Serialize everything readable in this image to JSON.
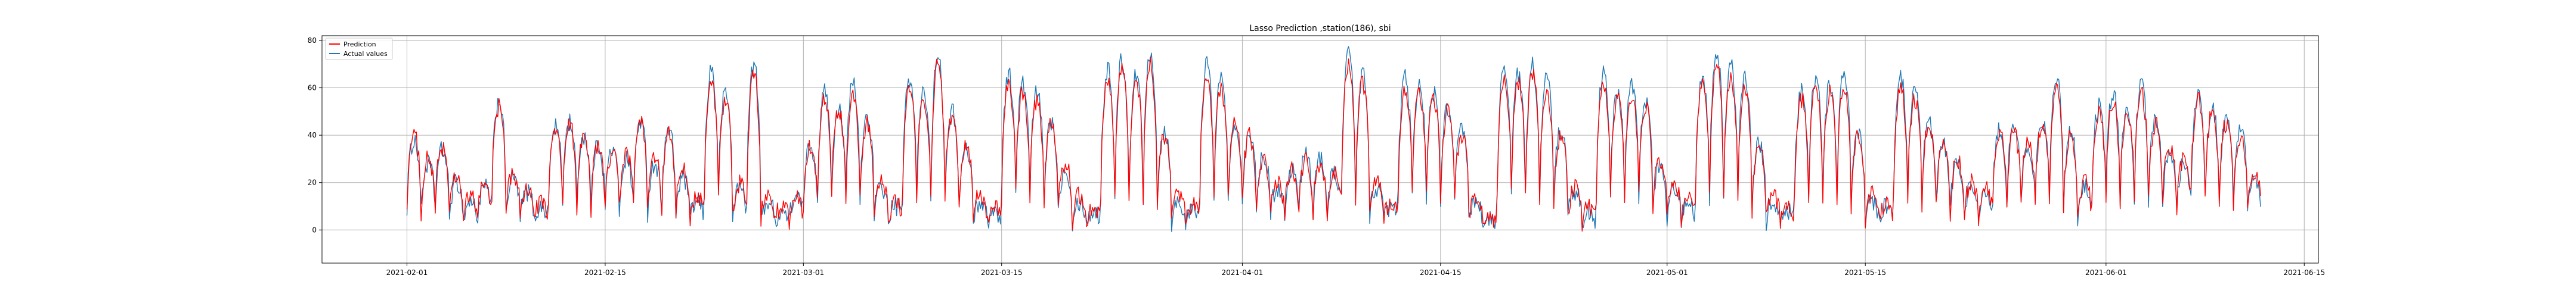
{
  "chart_data": {
    "type": "line",
    "title": "Lasso Prediction ,station(186), sbi",
    "xlabel": "",
    "ylabel": "",
    "x_range": [
      "2021-01-26",
      "2021-06-16"
    ],
    "ylim": [
      -14,
      82
    ],
    "y_ticks": [
      0,
      20,
      40,
      60,
      80
    ],
    "x_ticks": [
      "2021-02-01",
      "2021-02-15",
      "2021-03-01",
      "2021-03-15",
      "2021-04-01",
      "2021-04-15",
      "2021-05-01",
      "2021-05-15",
      "2021-06-01",
      "2021-06-15"
    ],
    "grid": true,
    "legend_position": "upper-left",
    "data_start": "2021-02-01",
    "data_end": "2021-06-11",
    "series": [
      {
        "name": "Prediction",
        "color": "#ff0000",
        "points": [
          [
            "2021-02-01",
            40
          ],
          [
            "2021-02-02",
            30
          ],
          [
            "2021-02-03",
            35
          ],
          [
            "2021-02-04",
            22
          ],
          [
            "2021-02-05",
            14
          ],
          [
            "2021-02-06",
            20
          ],
          [
            "2021-02-07",
            52
          ],
          [
            "2021-02-08",
            24
          ],
          [
            "2021-02-09",
            18
          ],
          [
            "2021-02-10",
            12
          ],
          [
            "2021-02-11",
            42
          ],
          [
            "2021-02-12",
            44
          ],
          [
            "2021-02-13",
            38
          ],
          [
            "2021-02-14",
            35
          ],
          [
            "2021-02-15",
            33
          ],
          [
            "2021-02-16",
            32
          ],
          [
            "2021-02-17",
            45
          ],
          [
            "2021-02-18",
            30
          ],
          [
            "2021-02-19",
            40
          ],
          [
            "2021-02-20",
            25
          ],
          [
            "2021-02-21",
            15
          ],
          [
            "2021-02-22",
            62
          ],
          [
            "2021-02-23",
            55
          ],
          [
            "2021-02-24",
            20
          ],
          [
            "2021-02-25",
            65
          ],
          [
            "2021-02-26",
            15
          ],
          [
            "2021-02-27",
            10
          ],
          [
            "2021-02-28",
            15
          ],
          [
            "2021-03-01",
            35
          ],
          [
            "2021-03-02",
            55
          ],
          [
            "2021-03-03",
            50
          ],
          [
            "2021-03-04",
            58
          ],
          [
            "2021-03-05",
            45
          ],
          [
            "2021-03-06",
            20
          ],
          [
            "2021-03-07",
            12
          ],
          [
            "2021-03-08",
            60
          ],
          [
            "2021-03-09",
            55
          ],
          [
            "2021-03-10",
            70
          ],
          [
            "2021-03-11",
            48
          ],
          [
            "2021-03-12",
            35
          ],
          [
            "2021-03-13",
            15
          ],
          [
            "2021-03-14",
            10
          ],
          [
            "2021-03-15",
            62
          ],
          [
            "2021-03-16",
            58
          ],
          [
            "2021-03-17",
            55
          ],
          [
            "2021-03-18",
            45
          ],
          [
            "2021-03-19",
            28
          ],
          [
            "2021-03-20",
            15
          ],
          [
            "2021-03-21",
            10
          ],
          [
            "2021-03-22",
            64
          ],
          [
            "2021-03-23",
            68
          ],
          [
            "2021-03-24",
            63
          ],
          [
            "2021-03-25",
            70
          ],
          [
            "2021-03-26",
            40
          ],
          [
            "2021-03-27",
            15
          ],
          [
            "2021-03-28",
            10
          ],
          [
            "2021-03-29",
            65
          ],
          [
            "2021-03-30",
            60
          ],
          [
            "2021-03-31",
            45
          ],
          [
            "2021-04-01",
            40
          ],
          [
            "2021-04-02",
            30
          ],
          [
            "2021-04-03",
            20
          ],
          [
            "2021-04-04",
            25
          ],
          [
            "2021-04-05",
            30
          ],
          [
            "2021-04-06",
            28
          ],
          [
            "2021-04-07",
            25
          ],
          [
            "2021-04-08",
            70
          ],
          [
            "2021-04-09",
            62
          ],
          [
            "2021-04-10",
            20
          ],
          [
            "2021-04-11",
            12
          ],
          [
            "2021-04-12",
            60
          ],
          [
            "2021-04-13",
            58
          ],
          [
            "2021-04-14",
            55
          ],
          [
            "2021-04-15",
            50
          ],
          [
            "2021-04-16",
            40
          ],
          [
            "2021-04-17",
            15
          ],
          [
            "2021-04-18",
            5
          ],
          [
            "2021-04-19",
            65
          ],
          [
            "2021-04-20",
            62
          ],
          [
            "2021-04-21",
            66
          ],
          [
            "2021-04-22",
            60
          ],
          [
            "2021-04-23",
            40
          ],
          [
            "2021-04-24",
            18
          ],
          [
            "2021-04-25",
            10
          ],
          [
            "2021-04-26",
            62
          ],
          [
            "2021-04-27",
            55
          ],
          [
            "2021-04-28",
            58
          ],
          [
            "2021-04-29",
            52
          ],
          [
            "2021-04-30",
            30
          ],
          [
            "2021-05-01",
            20
          ],
          [
            "2021-05-02",
            15
          ],
          [
            "2021-05-03",
            62
          ],
          [
            "2021-05-04",
            70
          ],
          [
            "2021-05-05",
            65
          ],
          [
            "2021-05-06",
            60
          ],
          [
            "2021-05-07",
            35
          ],
          [
            "2021-05-08",
            15
          ],
          [
            "2021-05-09",
            10
          ],
          [
            "2021-05-10",
            55
          ],
          [
            "2021-05-11",
            60
          ],
          [
            "2021-05-12",
            58
          ],
          [
            "2021-05-13",
            62
          ],
          [
            "2021-05-14",
            40
          ],
          [
            "2021-05-15",
            15
          ],
          [
            "2021-05-16",
            12
          ],
          [
            "2021-05-17",
            60
          ],
          [
            "2021-05-18",
            55
          ],
          [
            "2021-05-19",
            45
          ],
          [
            "2021-05-20",
            35
          ],
          [
            "2021-05-21",
            30
          ],
          [
            "2021-05-22",
            20
          ],
          [
            "2021-05-23",
            18
          ],
          [
            "2021-05-24",
            40
          ],
          [
            "2021-05-25",
            42
          ],
          [
            "2021-05-26",
            38
          ],
          [
            "2021-05-27",
            45
          ],
          [
            "2021-05-28",
            60
          ],
          [
            "2021-05-29",
            40
          ],
          [
            "2021-05-30",
            20
          ],
          [
            "2021-05-31",
            50
          ],
          [
            "2021-06-01",
            55
          ],
          [
            "2021-06-02",
            50
          ],
          [
            "2021-06-03",
            58
          ],
          [
            "2021-06-04",
            45
          ],
          [
            "2021-06-05",
            35
          ],
          [
            "2021-06-06",
            30
          ],
          [
            "2021-06-07",
            55
          ],
          [
            "2021-06-08",
            50
          ],
          [
            "2021-06-09",
            45
          ],
          [
            "2021-06-10",
            40
          ],
          [
            "2021-06-11",
            25
          ]
        ]
      },
      {
        "name": "Actual values",
        "color": "#1f77b4",
        "points": [
          [
            "2021-02-01",
            38
          ],
          [
            "2021-02-02",
            28
          ],
          [
            "2021-02-03",
            34
          ],
          [
            "2021-02-04",
            20
          ],
          [
            "2021-02-05",
            12
          ],
          [
            "2021-02-06",
            18
          ],
          [
            "2021-02-07",
            55
          ],
          [
            "2021-02-08",
            22
          ],
          [
            "2021-02-09",
            16
          ],
          [
            "2021-02-10",
            10
          ],
          [
            "2021-02-11",
            44
          ],
          [
            "2021-02-12",
            46
          ],
          [
            "2021-02-13",
            40
          ],
          [
            "2021-02-14",
            36
          ],
          [
            "2021-02-15",
            34
          ],
          [
            "2021-02-16",
            30
          ],
          [
            "2021-02-17",
            46
          ],
          [
            "2021-02-18",
            28
          ],
          [
            "2021-02-19",
            42
          ],
          [
            "2021-02-20",
            22
          ],
          [
            "2021-02-21",
            12
          ],
          [
            "2021-02-22",
            68
          ],
          [
            "2021-02-23",
            58
          ],
          [
            "2021-02-24",
            18
          ],
          [
            "2021-02-25",
            70
          ],
          [
            "2021-02-26",
            12
          ],
          [
            "2021-02-27",
            8
          ],
          [
            "2021-02-28",
            14
          ],
          [
            "2021-03-01",
            36
          ],
          [
            "2021-03-02",
            58
          ],
          [
            "2021-03-03",
            52
          ],
          [
            "2021-03-04",
            62
          ],
          [
            "2021-03-05",
            48
          ],
          [
            "2021-03-06",
            18
          ],
          [
            "2021-03-07",
            10
          ],
          [
            "2021-03-08",
            64
          ],
          [
            "2021-03-09",
            58
          ],
          [
            "2021-03-10",
            75
          ],
          [
            "2021-03-11",
            50
          ],
          [
            "2021-03-12",
            34
          ],
          [
            "2021-03-13",
            12
          ],
          [
            "2021-03-14",
            8
          ],
          [
            "2021-03-15",
            66
          ],
          [
            "2021-03-16",
            62
          ],
          [
            "2021-03-17",
            58
          ],
          [
            "2021-03-18",
            46
          ],
          [
            "2021-03-19",
            26
          ],
          [
            "2021-03-20",
            12
          ],
          [
            "2021-03-21",
            8
          ],
          [
            "2021-03-22",
            68
          ],
          [
            "2021-03-23",
            72
          ],
          [
            "2021-03-24",
            66
          ],
          [
            "2021-03-25",
            76
          ],
          [
            "2021-03-26",
            42
          ],
          [
            "2021-03-27",
            12
          ],
          [
            "2021-03-28",
            8
          ],
          [
            "2021-03-29",
            70
          ],
          [
            "2021-03-30",
            64
          ],
          [
            "2021-03-31",
            46
          ],
          [
            "2021-04-01",
            42
          ],
          [
            "2021-04-02",
            32
          ],
          [
            "2021-04-03",
            18
          ],
          [
            "2021-04-04",
            26
          ],
          [
            "2021-04-05",
            32
          ],
          [
            "2021-04-06",
            30
          ],
          [
            "2021-04-07",
            24
          ],
          [
            "2021-04-08",
            75
          ],
          [
            "2021-04-09",
            66
          ],
          [
            "2021-04-10",
            18
          ],
          [
            "2021-04-11",
            10
          ],
          [
            "2021-04-12",
            64
          ],
          [
            "2021-04-13",
            62
          ],
          [
            "2021-04-14",
            58
          ],
          [
            "2021-04-15",
            52
          ],
          [
            "2021-04-16",
            42
          ],
          [
            "2021-04-17",
            12
          ],
          [
            "2021-04-18",
            4
          ],
          [
            "2021-04-19",
            70
          ],
          [
            "2021-04-20",
            66
          ],
          [
            "2021-04-21",
            70
          ],
          [
            "2021-04-22",
            64
          ],
          [
            "2021-04-23",
            42
          ],
          [
            "2021-04-24",
            16
          ],
          [
            "2021-04-25",
            8
          ],
          [
            "2021-04-26",
            66
          ],
          [
            "2021-04-27",
            58
          ],
          [
            "2021-04-28",
            62
          ],
          [
            "2021-04-29",
            54
          ],
          [
            "2021-04-30",
            28
          ],
          [
            "2021-05-01",
            18
          ],
          [
            "2021-05-02",
            12
          ],
          [
            "2021-05-03",
            66
          ],
          [
            "2021-05-04",
            76
          ],
          [
            "2021-05-05",
            70
          ],
          [
            "2021-05-06",
            64
          ],
          [
            "2021-05-07",
            36
          ],
          [
            "2021-05-08",
            12
          ],
          [
            "2021-05-09",
            8
          ],
          [
            "2021-05-10",
            58
          ],
          [
            "2021-05-11",
            64
          ],
          [
            "2021-05-12",
            62
          ],
          [
            "2021-05-13",
            66
          ],
          [
            "2021-05-14",
            42
          ],
          [
            "2021-05-15",
            12
          ],
          [
            "2021-05-16",
            10
          ],
          [
            "2021-05-17",
            64
          ],
          [
            "2021-05-18",
            58
          ],
          [
            "2021-05-19",
            46
          ],
          [
            "2021-05-20",
            36
          ],
          [
            "2021-05-21",
            28
          ],
          [
            "2021-05-22",
            18
          ],
          [
            "2021-05-23",
            16
          ],
          [
            "2021-05-24",
            42
          ],
          [
            "2021-05-25",
            44
          ],
          [
            "2021-05-26",
            36
          ],
          [
            "2021-05-27",
            46
          ],
          [
            "2021-05-28",
            64
          ],
          [
            "2021-05-29",
            42
          ],
          [
            "2021-05-30",
            18
          ],
          [
            "2021-05-31",
            52
          ],
          [
            "2021-06-01",
            58
          ],
          [
            "2021-06-02",
            52
          ],
          [
            "2021-06-03",
            62
          ],
          [
            "2021-06-04",
            46
          ],
          [
            "2021-06-05",
            34
          ],
          [
            "2021-06-06",
            28
          ],
          [
            "2021-06-07",
            58
          ],
          [
            "2021-06-08",
            52
          ],
          [
            "2021-06-09",
            46
          ],
          [
            "2021-06-10",
            42
          ],
          [
            "2021-06-11",
            22
          ]
        ]
      }
    ]
  }
}
